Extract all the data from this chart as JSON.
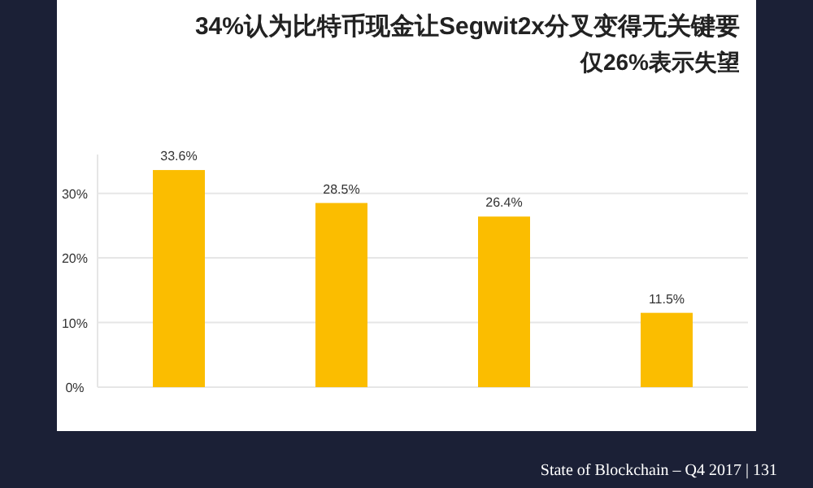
{
  "chart_data": {
    "type": "bar",
    "title": "34%认为比特币现金让Segwit2x分叉变得无关键要",
    "subtitle": "仅26%表示失望",
    "categories": [
      null,
      null,
      null,
      null
    ],
    "values": [
      33.6,
      28.5,
      26.4,
      11.5
    ],
    "color": "#fbbd00",
    "value_labels": [
      "33.6%",
      "28.5%",
      "26.4%",
      "11.5%"
    ],
    "ylim": [
      0,
      36
    ],
    "yticks": [
      {
        "value": 0,
        "label": "0%"
      },
      {
        "value": 10,
        "label": "10%"
      },
      {
        "value": 20,
        "label": "20%"
      },
      {
        "value": 30,
        "label": "30%"
      }
    ],
    "grid": "y",
    "annotations": [
      "State of Blockchain – Q4 2017  |  131"
    ]
  }
}
